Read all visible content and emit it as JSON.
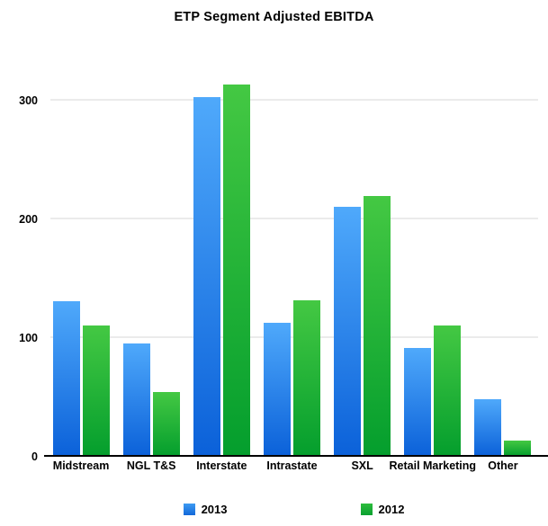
{
  "title": "ETP Segment Adjusted EBITDA",
  "colors": {
    "bar_blue_top": "#4FA9FB",
    "bar_blue_bottom": "#0B61D9",
    "bar_green_top": "#44C843",
    "bar_green_bottom": "#049E2D",
    "gridline": "#EBEBEB",
    "axis_line": "#000000",
    "text": "#000000",
    "background": "#FFFFFF"
  },
  "legend": {
    "items": [
      {
        "label": "2013",
        "swatch": "blue-square"
      },
      {
        "label": "2012",
        "swatch": "green-square"
      }
    ],
    "position": "bottom"
  },
  "chart_data": {
    "type": "bar",
    "title": "ETP Segment Adjusted EBITDA",
    "categories": [
      "Midstream",
      "NGL T&S",
      "Interstate",
      "Intrastate",
      "SXL",
      "Retail Marketing",
      "Other"
    ],
    "series": [
      {
        "name": "2013",
        "color": "#2E8FEF",
        "values": [
          130,
          95,
          302,
          112,
          210,
          91,
          48
        ]
      },
      {
        "name": "2012",
        "color": "#16B53A",
        "values": [
          110,
          54,
          313,
          131,
          219,
          110,
          13
        ]
      }
    ],
    "xlabel": "",
    "ylabel": "",
    "yticks": [
      0,
      100,
      200,
      300
    ],
    "ylim": [
      0,
      350
    ],
    "grid": true,
    "legend_position": "bottom"
  }
}
